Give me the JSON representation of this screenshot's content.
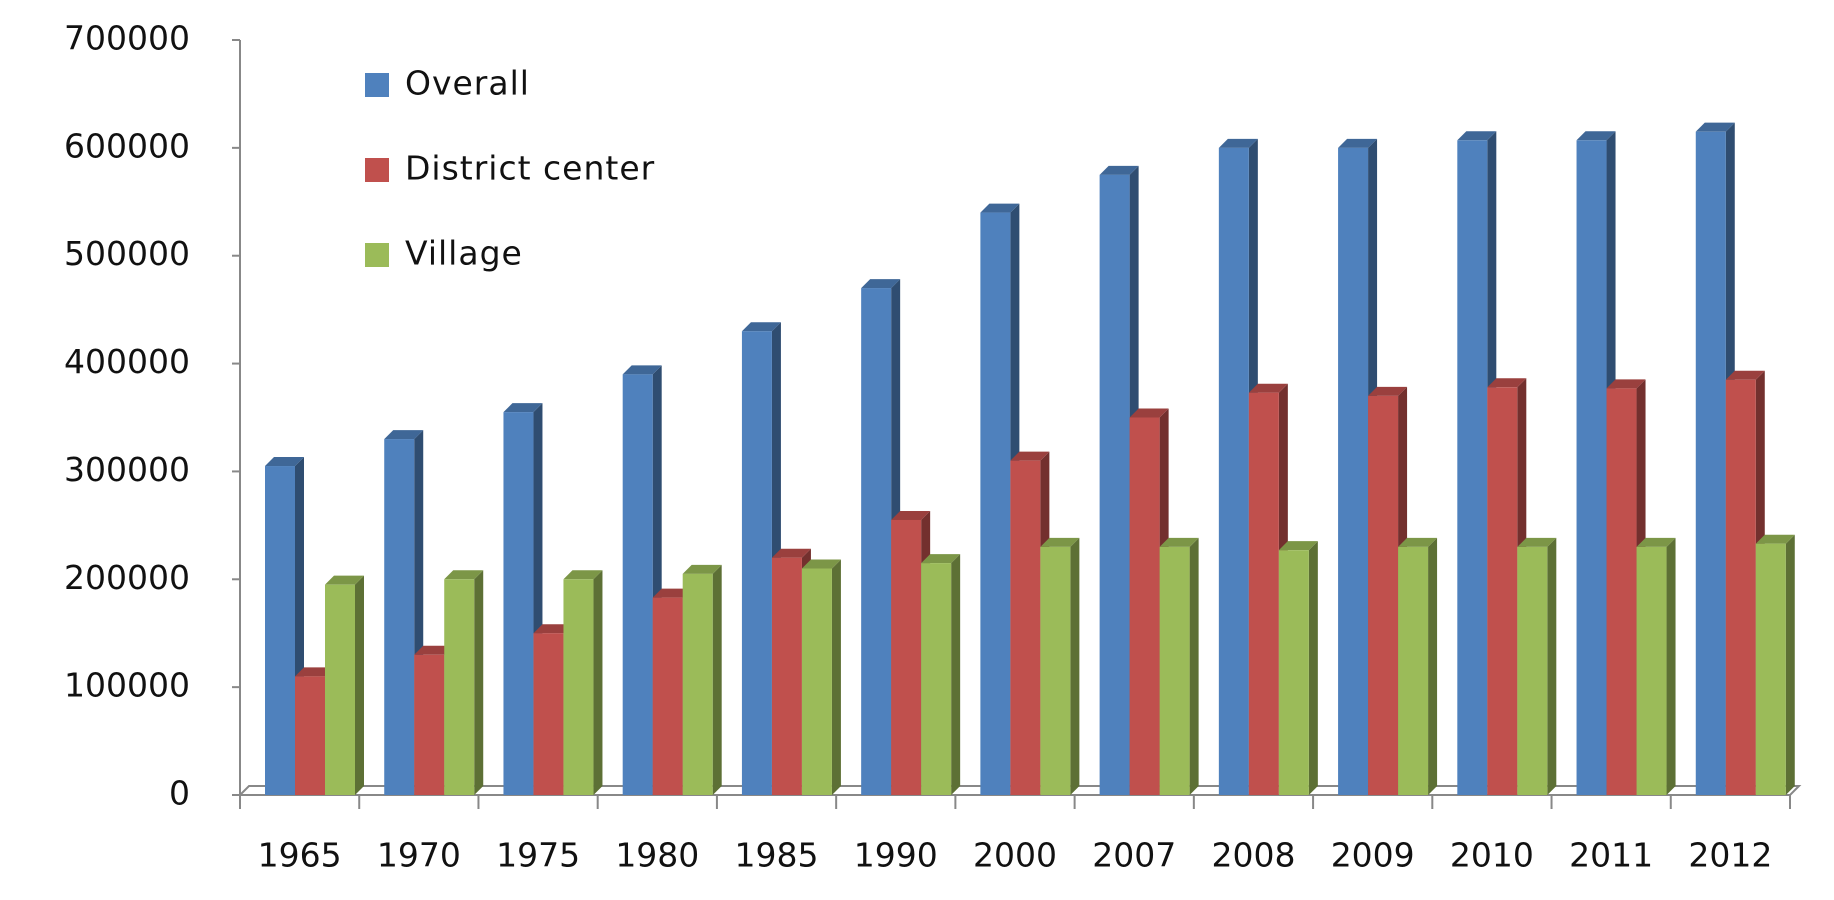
{
  "chart_data": {
    "type": "bar3d",
    "categories": [
      "1965",
      "1970",
      "1975",
      "1980",
      "1985",
      "1990",
      "2000",
      "2007",
      "2008",
      "2009",
      "2010",
      "2011",
      "2012"
    ],
    "series": [
      {
        "name": "Overall",
        "color": "#4f81bd",
        "values": [
          305000,
          330000,
          355000,
          390000,
          430000,
          470000,
          540000,
          575000,
          600000,
          600000,
          607000,
          607000,
          615000
        ]
      },
      {
        "name": "District center",
        "color": "#c0504d",
        "values": [
          110000,
          130000,
          150000,
          183000,
          220000,
          255000,
          310000,
          350000,
          373000,
          370000,
          378000,
          377000,
          385000
        ]
      },
      {
        "name": "Village",
        "color": "#9bbb59",
        "values": [
          195000,
          200000,
          200000,
          205000,
          210000,
          215000,
          230000,
          230000,
          227000,
          230000,
          230000,
          230000,
          233000
        ]
      }
    ],
    "ylim": [
      0,
      700000
    ],
    "yticks": [
      0,
      100000,
      200000,
      300000,
      400000,
      500000,
      600000,
      700000
    ],
    "grid": false,
    "legend": "top-left"
  }
}
